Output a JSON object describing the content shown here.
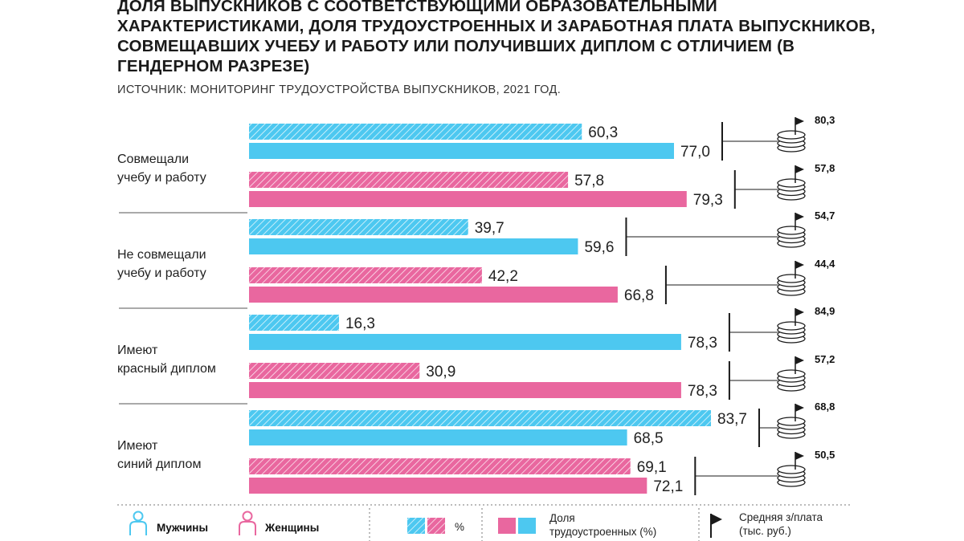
{
  "title": "ДОЛЯ ВЫПУСКНИКОВ С СООТВЕТСТВУЮЩИМИ ОБРАЗОВАТЕЛЬНЫМИ ХАРАКТЕРИСТИКАМИ, ДОЛЯ ТРУДОУСТРОЕННЫХ И ЗАРАБОТНАЯ ПЛАТА ВЫПУСКНИКОВ, СОВМЕЩАВШИХ УЧЕБУ И РАБОТУ ИЛИ ПОЛУЧИВШИХ ДИПЛОМ С ОТЛИЧИЕМ (В ГЕНДЕРНОМ РАЗРЕЗЕ)",
  "subtitle": "ИСТОЧНИК: МОНИТОРИНГ ТРУДОУСТРОЙСТВА ВЫПУСКНИКОВ, 2021 ГОД.",
  "colors": {
    "men": "#4dc8f0",
    "women": "#e9679f",
    "text": "#222222",
    "flag": "#1a1a1a"
  },
  "chart_data": {
    "type": "bar",
    "orientation": "horizontal",
    "groups": [
      {
        "label_lines": [
          "Совмещали",
          "учебу и работу"
        ],
        "rows": [
          {
            "gender": "Мужчины",
            "share": 60.3,
            "share_label": "60,3",
            "employed": 77.0,
            "employed_label": "77,0",
            "salary": 80.3,
            "salary_label": "80,3"
          },
          {
            "gender": "Женщины",
            "share": 57.8,
            "share_label": "57,8",
            "employed": 79.3,
            "employed_label": "79,3",
            "salary": 57.8,
            "salary_label": "57,8"
          }
        ]
      },
      {
        "label_lines": [
          "Не совмещали",
          "учебу и работу"
        ],
        "rows": [
          {
            "gender": "Мужчины",
            "share": 39.7,
            "share_label": "39,7",
            "employed": 59.6,
            "employed_label": "59,6",
            "salary": 54.7,
            "salary_label": "54,7"
          },
          {
            "gender": "Женщины",
            "share": 42.2,
            "share_label": "42,2",
            "employed": 66.8,
            "employed_label": "66,8",
            "salary": 44.4,
            "salary_label": "44,4"
          }
        ]
      },
      {
        "label_lines": [
          "Имеют",
          "красный диплом"
        ],
        "rows": [
          {
            "gender": "Мужчины",
            "share": 16.3,
            "share_label": "16,3",
            "employed": 78.3,
            "employed_label": "78,3",
            "salary": 84.9,
            "salary_label": "84,9"
          },
          {
            "gender": "Женщины",
            "share": 30.9,
            "share_label": "30,9",
            "employed": 78.3,
            "employed_label": "78,3",
            "salary": 57.2,
            "salary_label": "57,2"
          }
        ]
      },
      {
        "label_lines": [
          "Имеют",
          "синий диплом"
        ],
        "rows": [
          {
            "gender": "Мужчины",
            "share": 83.7,
            "share_label": "83,7",
            "employed": 68.5,
            "employed_label": "68,5",
            "salary": 68.8,
            "salary_label": "68,8"
          },
          {
            "gender": "Женщины",
            "share": 69.1,
            "share_label": "69,1",
            "employed": 72.1,
            "employed_label": "72,1",
            "salary": 50.5,
            "salary_label": "50,5"
          }
        ]
      }
    ],
    "series": [
      {
        "name": "%",
        "key": "share",
        "style": "hatched"
      },
      {
        "name": "Доля трудоустроенных (%)",
        "key": "employed",
        "style": "solid"
      },
      {
        "name": "Средняя з/плата (тыс. руб.)",
        "key": "salary",
        "style": "flag-marker"
      }
    ],
    "xlim": [
      0,
      100
    ]
  },
  "legend": {
    "men": "Мужчины",
    "women": "Женщины",
    "percent": "%",
    "employed_line1": "Доля",
    "employed_line2": "трудоустроенных (%)",
    "salary_line1": "Средняя з/плата",
    "salary_line2": "(тыс. руб.)"
  }
}
